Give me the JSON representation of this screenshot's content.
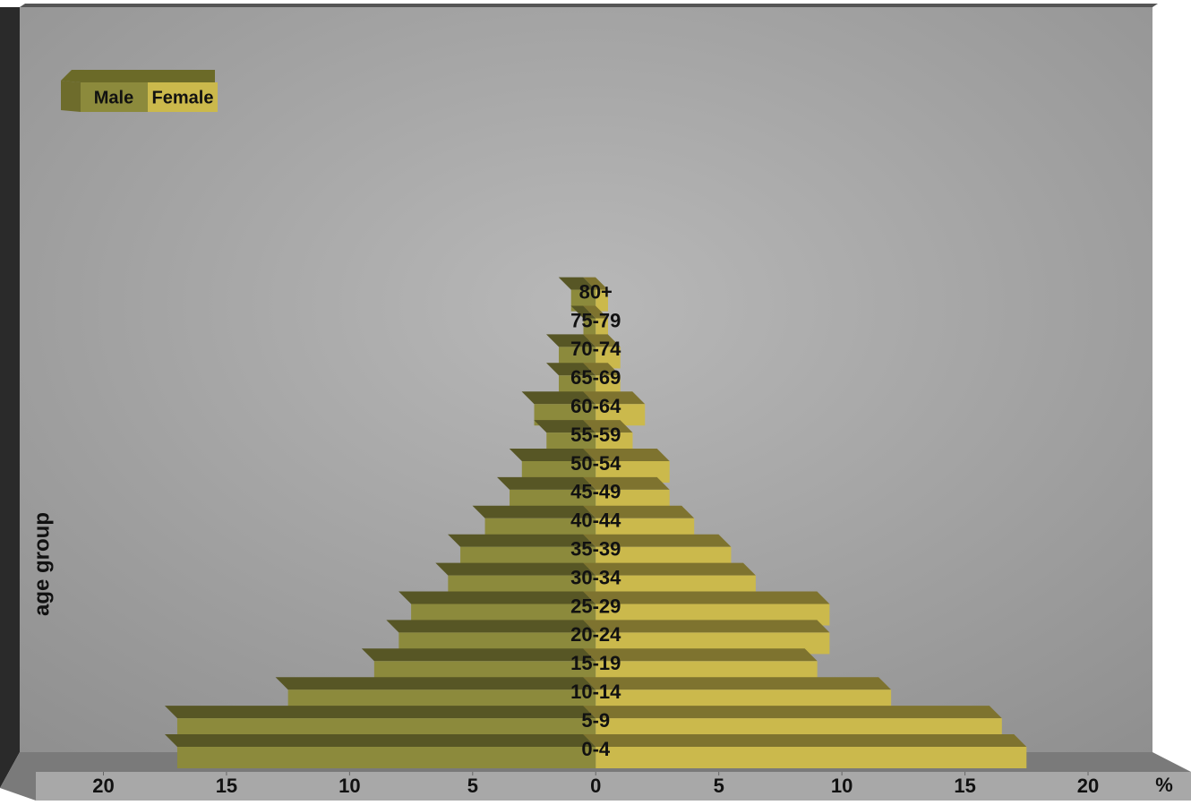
{
  "chart_data": {
    "type": "pyramid",
    "y_label": "age group",
    "x_unit": "%",
    "categories": [
      "0-4",
      "5-9",
      "10-14",
      "15-19",
      "20-24",
      "25-29",
      "30-34",
      "35-39",
      "40-44",
      "45-49",
      "50-54",
      "55-59",
      "60-64",
      "65-69",
      "70-74",
      "75-79",
      "80+"
    ],
    "series": [
      {
        "name": "Male",
        "color": "#8c8a3c",
        "side": "left",
        "values": [
          17,
          17,
          12.5,
          9,
          8,
          7.5,
          6,
          5.5,
          4.5,
          3.5,
          3,
          2,
          2.5,
          1.5,
          1.5,
          0.5,
          1
        ]
      },
      {
        "name": "Female",
        "color": "#cbb94c",
        "side": "right",
        "values": [
          17.5,
          16.5,
          12,
          9,
          9.5,
          9.5,
          6.5,
          5.5,
          4,
          3,
          3,
          1.5,
          2,
          1,
          1,
          0.5,
          0.5
        ]
      }
    ],
    "xlim": [
      -21,
      22
    ],
    "xticks": [
      {
        "value": -20,
        "label": "20"
      },
      {
        "value": -15,
        "label": "15"
      },
      {
        "value": -10,
        "label": "10"
      },
      {
        "value": -5,
        "label": "5"
      },
      0,
      5,
      10,
      15,
      20
    ],
    "grid": false
  }
}
